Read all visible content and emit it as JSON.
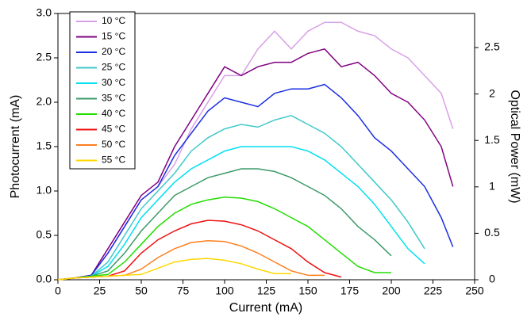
{
  "chart_data": {
    "type": "line",
    "x_label": "Current (mA)",
    "y_label": "Photocurrent (mA)",
    "y2_label": "Optical Power (mW)",
    "x": [
      0,
      10,
      20,
      30,
      40,
      50,
      60,
      70,
      80,
      90,
      100,
      110,
      120,
      130,
      140,
      150,
      160,
      170,
      180,
      190,
      200,
      210,
      220,
      230,
      237
    ],
    "xlim": [
      0,
      250
    ],
    "xticks": [
      0,
      25,
      50,
      75,
      100,
      125,
      150,
      175,
      200,
      225,
      250
    ],
    "ylim": [
      0,
      3
    ],
    "yticks": [
      {
        "value": 0,
        "label": "0.0"
      },
      0.5,
      {
        "value": 1,
        "label": "1.0"
      },
      1.5,
      {
        "value": 2,
        "label": "2.0"
      },
      2.5,
      {
        "value": 3,
        "label": "3.0"
      }
    ],
    "y2lim": [
      0,
      2.867
    ],
    "y2ticks": [
      0,
      0.5,
      1,
      1.5,
      2,
      2.5
    ],
    "legend": "upper-left",
    "series": [
      {
        "name": "10 °C",
        "color": "#d9a0e8",
        "values": [
          0,
          0.02,
          0.05,
          0.3,
          0.6,
          0.9,
          1.05,
          1.3,
          1.7,
          2.0,
          2.3,
          2.3,
          2.6,
          2.8,
          2.6,
          2.8,
          2.9,
          2.9,
          2.8,
          2.75,
          2.6,
          2.5,
          2.3,
          2.1,
          1.7
        ]
      },
      {
        "name": "15 °C",
        "color": "#800080",
        "values": [
          0,
          0.02,
          0.05,
          0.35,
          0.65,
          0.95,
          1.1,
          1.5,
          1.8,
          2.1,
          2.4,
          2.3,
          2.4,
          2.45,
          2.45,
          2.55,
          2.6,
          2.4,
          2.45,
          2.3,
          2.1,
          2.0,
          1.8,
          1.5,
          1.05
        ]
      },
      {
        "name": "20 °C",
        "color": "#1a2ee0",
        "values": [
          0,
          0.02,
          0.05,
          0.3,
          0.6,
          0.9,
          1.05,
          1.4,
          1.65,
          1.9,
          2.05,
          2.0,
          1.95,
          2.1,
          2.15,
          2.15,
          2.2,
          2.05,
          1.85,
          1.6,
          1.45,
          1.25,
          1.05,
          0.7,
          0.37
        ]
      },
      {
        "name": "25 °C",
        "color": "#40c8c8",
        "values": [
          0,
          0.02,
          0.04,
          0.2,
          0.5,
          0.8,
          1.0,
          1.2,
          1.45,
          1.6,
          1.7,
          1.75,
          1.72,
          1.8,
          1.85,
          1.75,
          1.65,
          1.5,
          1.3,
          1.1,
          0.9,
          0.65,
          0.35,
          null,
          null
        ]
      },
      {
        "name": "30 °C",
        "color": "#00e0f0",
        "values": [
          0,
          0.02,
          0.04,
          0.15,
          0.4,
          0.7,
          0.9,
          1.1,
          1.25,
          1.35,
          1.45,
          1.5,
          1.5,
          1.5,
          1.5,
          1.45,
          1.35,
          1.2,
          1.05,
          0.85,
          0.6,
          0.35,
          0.18,
          null,
          null
        ]
      },
      {
        "name": "35 °C",
        "color": "#3c9a6a",
        "values": [
          0,
          0.02,
          0.04,
          0.1,
          0.3,
          0.55,
          0.75,
          0.95,
          1.05,
          1.15,
          1.2,
          1.25,
          1.25,
          1.22,
          1.15,
          1.05,
          0.95,
          0.8,
          0.6,
          0.45,
          0.27,
          null,
          null,
          null,
          null
        ]
      },
      {
        "name": "40 °C",
        "color": "#22dd00",
        "values": [
          0,
          0.02,
          0.04,
          0.06,
          0.2,
          0.4,
          0.6,
          0.75,
          0.85,
          0.9,
          0.93,
          0.92,
          0.88,
          0.8,
          0.7,
          0.6,
          0.45,
          0.3,
          0.15,
          0.08,
          0.08,
          null,
          null,
          null,
          null
        ]
      },
      {
        "name": "45 °C",
        "color": "#ee1111",
        "values": [
          0,
          0.02,
          0.03,
          0.04,
          0.1,
          0.3,
          0.45,
          0.55,
          0.63,
          0.67,
          0.66,
          0.62,
          0.55,
          0.45,
          0.35,
          0.2,
          0.08,
          0.03,
          null,
          null,
          null,
          null,
          null,
          null,
          null
        ]
      },
      {
        "name": "50 °C",
        "color": "#ff7f1f",
        "values": [
          0,
          0.02,
          0.03,
          0.04,
          0.05,
          0.12,
          0.25,
          0.35,
          0.42,
          0.44,
          0.43,
          0.38,
          0.3,
          0.2,
          0.1,
          0.05,
          0.05,
          null,
          null,
          null,
          null,
          null,
          null,
          null,
          null
        ]
      },
      {
        "name": "55 °C",
        "color": "#ffd700",
        "values": [
          0,
          0.02,
          0.03,
          0.04,
          0.05,
          0.06,
          0.13,
          0.2,
          0.23,
          0.24,
          0.22,
          0.18,
          0.12,
          0.07,
          0.07,
          null,
          null,
          null,
          null,
          null,
          null,
          null,
          null,
          null,
          null
        ]
      }
    ]
  }
}
